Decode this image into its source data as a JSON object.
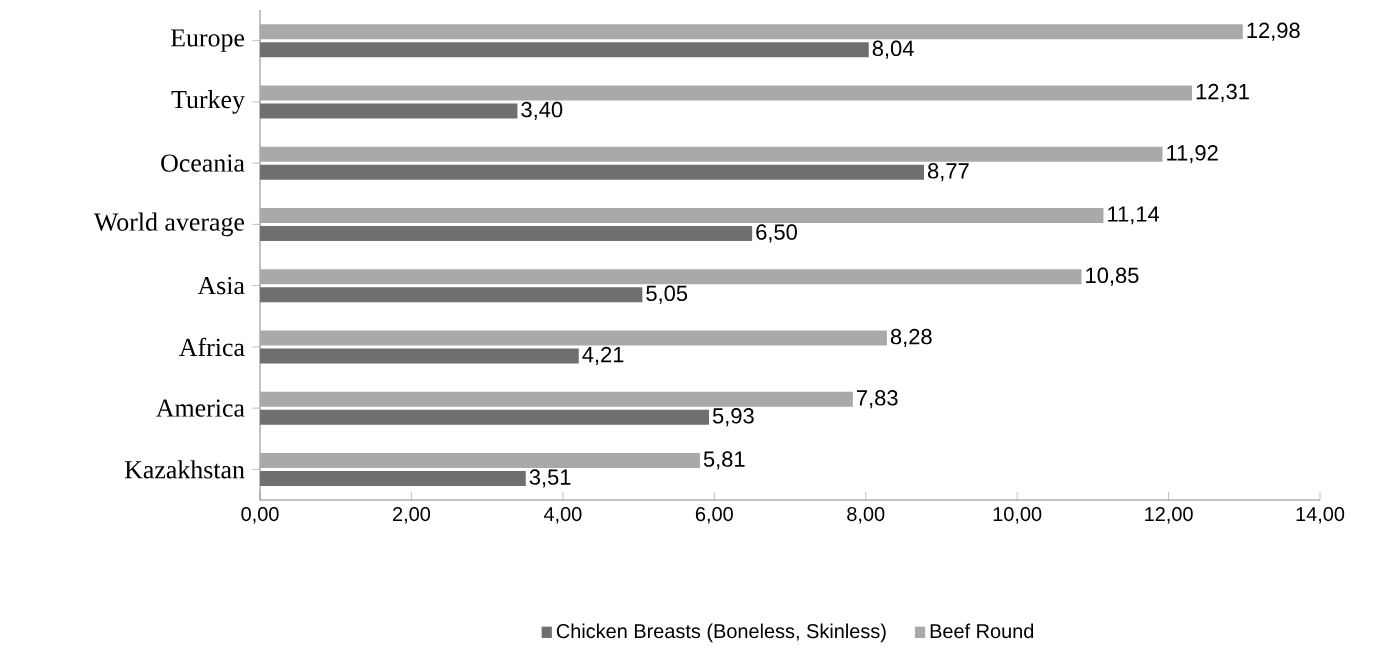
{
  "chart_data": {
    "type": "bar",
    "orientation": "horizontal",
    "categories": [
      "Europe",
      "Turkey",
      "Oceania",
      "World average",
      "Asia",
      "Africa",
      "America",
      "Kazakhstan"
    ],
    "series": [
      {
        "name": "Chicken Breasts (Boneless, Skinless)",
        "color": "#6f6f6f",
        "values": [
          8.04,
          3.4,
          8.77,
          6.5,
          5.05,
          4.21,
          5.93,
          3.51
        ],
        "value_labels": [
          "8,04",
          "3,40",
          "8,77",
          "6,50",
          "5,05",
          "4,21",
          "5,93",
          "3,51"
        ]
      },
      {
        "name": "Beef Round",
        "color": "#a9a9a9",
        "values": [
          12.98,
          12.31,
          11.92,
          11.14,
          10.85,
          8.28,
          7.83,
          5.81
        ],
        "value_labels": [
          "12,98",
          "12,31",
          "11,92",
          "11,14",
          "10,85",
          "8,28",
          "7,83",
          "5,81"
        ]
      }
    ],
    "xlim": [
      0,
      14
    ],
    "xticks": [
      {
        "value": 0,
        "label": "0,00"
      },
      {
        "value": 2,
        "label": "2,00"
      },
      {
        "value": 4,
        "label": "4,00"
      },
      {
        "value": 6,
        "label": "6,00"
      },
      {
        "value": 8,
        "label": "8,00"
      },
      {
        "value": 10,
        "label": "10,00"
      },
      {
        "value": 12,
        "label": "12,00"
      },
      {
        "value": 14,
        "label": "14,00"
      }
    ],
    "legend": "bottom"
  }
}
